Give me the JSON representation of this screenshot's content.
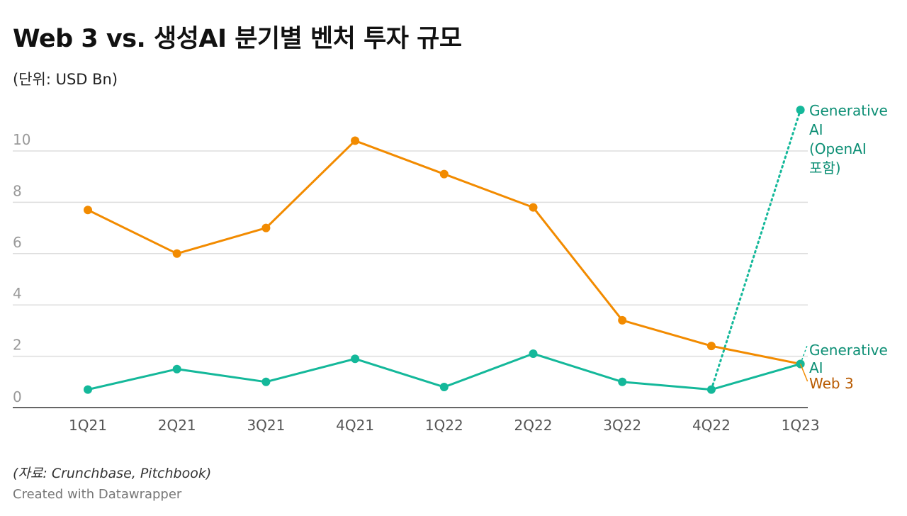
{
  "title": "Web 3 vs. 생성AI 분기별 벤처 투자 규모",
  "subtitle": "(단위: USD Bn)",
  "source": "(자료: Crunchbase, Pitchbook)",
  "credit": "Created with Datawrapper",
  "colors": {
    "web3": "#f28b00",
    "genai": "#14b89a",
    "grid": "#dddddd",
    "axis": "#333333",
    "tick": "#999999",
    "web3_label": "#b85a00",
    "genai_label": "#0d8f75"
  },
  "chart_data": {
    "type": "line",
    "categories": [
      "1Q21",
      "2Q21",
      "3Q21",
      "4Q21",
      "1Q22",
      "2Q22",
      "3Q22",
      "4Q22",
      "1Q23"
    ],
    "ylim": [
      0,
      11
    ],
    "yticks": [
      0,
      2,
      4,
      6,
      8,
      10
    ],
    "ytick_labels": [
      "0",
      "2",
      "4",
      "6",
      "8",
      "10"
    ],
    "series": [
      {
        "name": "Web 3",
        "label": "Web 3",
        "values": [
          7.7,
          6.0,
          7.0,
          10.4,
          9.1,
          7.8,
          3.4,
          2.4,
          1.7
        ]
      },
      {
        "name": "Generative AI",
        "label": [
          "Generative",
          "AI"
        ],
        "values": [
          0.7,
          1.5,
          1.0,
          1.9,
          0.8,
          2.1,
          1.0,
          0.7,
          1.7
        ]
      }
    ],
    "annotation": {
      "series": "Generative AI (OpenAI 포함)",
      "from_category": "4Q22",
      "from_value": 0.7,
      "to_category": "1Q23",
      "to_value": 11.6,
      "label": [
        "Generative",
        "AI",
        "(OpenAI",
        "포함)"
      ]
    }
  }
}
